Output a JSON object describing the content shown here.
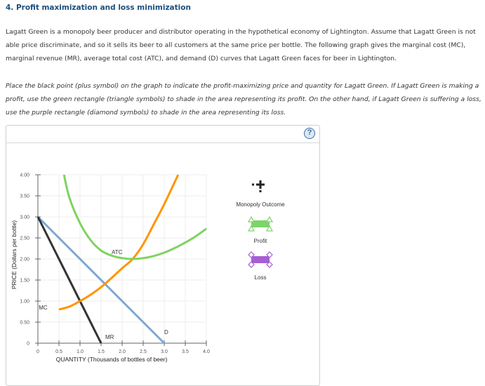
{
  "header": {
    "title": "4. Profit maximization and loss minimization"
  },
  "intro": {
    "paragraph": "Lagatt Green is a monopoly beer producer and distributor operating in the hypothetical economy of Lightington. Assume that Lagatt Green is not able price discriminate, and so it sells its beer to all customers at the same price per bottle. The following graph gives the marginal cost (MC), marginal revenue (MR), average total cost (ATC), and demand (D) curves that Lagatt Green faces for beer in Lightington."
  },
  "instructions": {
    "paragraph": "Place the black point (plus symbol) on the graph to indicate the profit-maximizing price and quantity for Lagatt Green. If Lagatt Green is making a profit, use the green rectangle (triangle symbols) to shade in the area representing its profit. On the other hand, if Lagatt Green is suffering a loss, use the purple rectangle (diamond symbols) to shade in the area representing its loss."
  },
  "panel": {
    "help_icon": "question-mark-icon",
    "help_label": "?"
  },
  "legend": {
    "items": [
      {
        "label": "Monopoly Outcome",
        "icon": "plus-point-icon",
        "color": "#222222"
      },
      {
        "label": "Profit",
        "icon": "green-rectangle-triangle-icon",
        "color": "#7dd46a"
      },
      {
        "label": "Loss",
        "icon": "purple-rectangle-diamond-icon",
        "color": "#a55fd4"
      }
    ]
  },
  "chart_data": {
    "type": "line",
    "title": "",
    "xlabel": "QUANTITY (Thousands of bottles of beer)",
    "ylabel": "PRICE (Dollars per bottle)",
    "xlim": [
      0,
      4.0
    ],
    "ylim": [
      0,
      4.0
    ],
    "x_ticks": [
      "0",
      "0.5",
      "1.0",
      "1.5",
      "2.0",
      "2.5",
      "3.0",
      "3.5",
      "4.0"
    ],
    "y_ticks": [
      "0",
      "0.50",
      "1.00",
      "1.50",
      "2.00",
      "2.50",
      "3.00",
      "3.50",
      "4.00"
    ],
    "grid": true,
    "series": [
      {
        "name": "D",
        "color": "#7fa7d0",
        "label_at": [
          3.0,
          0.22
        ],
        "points": [
          [
            0,
            3.0
          ],
          [
            3.0,
            0
          ]
        ]
      },
      {
        "name": "MR",
        "color": "#333333",
        "label_at": [
          1.6,
          0.1
        ],
        "points": [
          [
            0,
            3.0
          ],
          [
            1.5,
            0
          ]
        ]
      },
      {
        "name": "MC",
        "color": "#ff9500",
        "label_at": [
          0.02,
          0.8
        ],
        "points": [
          [
            0.5,
            0.8
          ],
          [
            0.75,
            0.87
          ],
          [
            1.0,
            1.0
          ],
          [
            1.25,
            1.15
          ],
          [
            1.5,
            1.33
          ],
          [
            1.75,
            1.55
          ],
          [
            2.0,
            1.78
          ],
          [
            2.25,
            2.0
          ],
          [
            2.5,
            2.35
          ],
          [
            2.75,
            2.82
          ],
          [
            3.0,
            3.3
          ],
          [
            3.33,
            4.0
          ]
        ]
      },
      {
        "name": "ATC",
        "color": "#7fd35f",
        "label_at": [
          1.75,
          2.12
        ],
        "points": [
          [
            0.62,
            4.0
          ],
          [
            0.75,
            3.45
          ],
          [
            1.0,
            2.85
          ],
          [
            1.25,
            2.45
          ],
          [
            1.5,
            2.2
          ],
          [
            1.75,
            2.08
          ],
          [
            2.0,
            2.02
          ],
          [
            2.25,
            2.0
          ],
          [
            2.5,
            2.02
          ],
          [
            2.75,
            2.07
          ],
          [
            3.0,
            2.15
          ],
          [
            3.25,
            2.26
          ],
          [
            3.5,
            2.39
          ],
          [
            3.75,
            2.54
          ],
          [
            4.0,
            2.72
          ]
        ]
      }
    ]
  }
}
